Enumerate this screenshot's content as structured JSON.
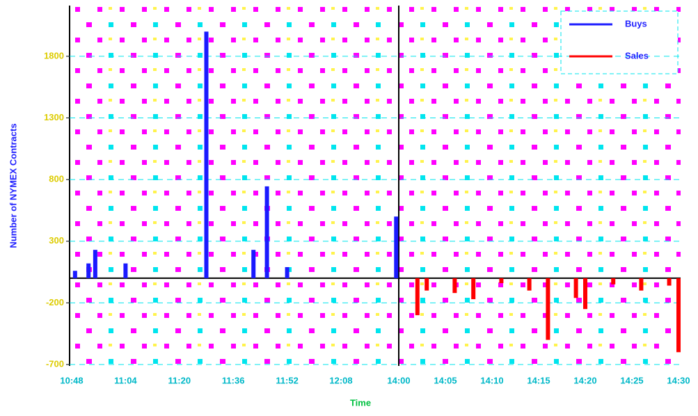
{
  "chart_data": {
    "type": "bar",
    "x_label": "Time",
    "y_label": "Number of NYMEX Contracts",
    "xticks": [
      "10:48",
      "11:04",
      "11:20",
      "11:36",
      "11:52",
      "12:08",
      "14:00",
      "14:05",
      "14:10",
      "14:15",
      "14:20",
      "14:25",
      "14:30"
    ],
    "ylim": [
      -700,
      2200
    ],
    "yticks": [
      -700,
      -200,
      300,
      800,
      1300,
      1800
    ],
    "grid": true,
    "legend": "upper right",
    "series": [
      {
        "name": "Buys",
        "color": "#1a1aff",
        "x": [
          "10:49",
          "10:53",
          "10:55",
          "11:04",
          "11:28",
          "11:42",
          "11:46",
          "11:52",
          "13:55"
        ],
        "values": [
          60,
          120,
          230,
          120,
          2000,
          230,
          745,
          90,
          500
        ]
      },
      {
        "name": "Sales",
        "color": "#ff0000",
        "x": [
          "14:02",
          "14:03",
          "14:06",
          "14:08",
          "14:11",
          "14:14",
          "14:16",
          "14:19",
          "14:20",
          "14:23",
          "14:26",
          "14:29",
          "14:30"
        ],
        "values": [
          -300,
          -100,
          -120,
          -170,
          -40,
          -100,
          -500,
          -160,
          -250,
          -50,
          -100,
          -60,
          -600
        ]
      }
    ]
  }
}
